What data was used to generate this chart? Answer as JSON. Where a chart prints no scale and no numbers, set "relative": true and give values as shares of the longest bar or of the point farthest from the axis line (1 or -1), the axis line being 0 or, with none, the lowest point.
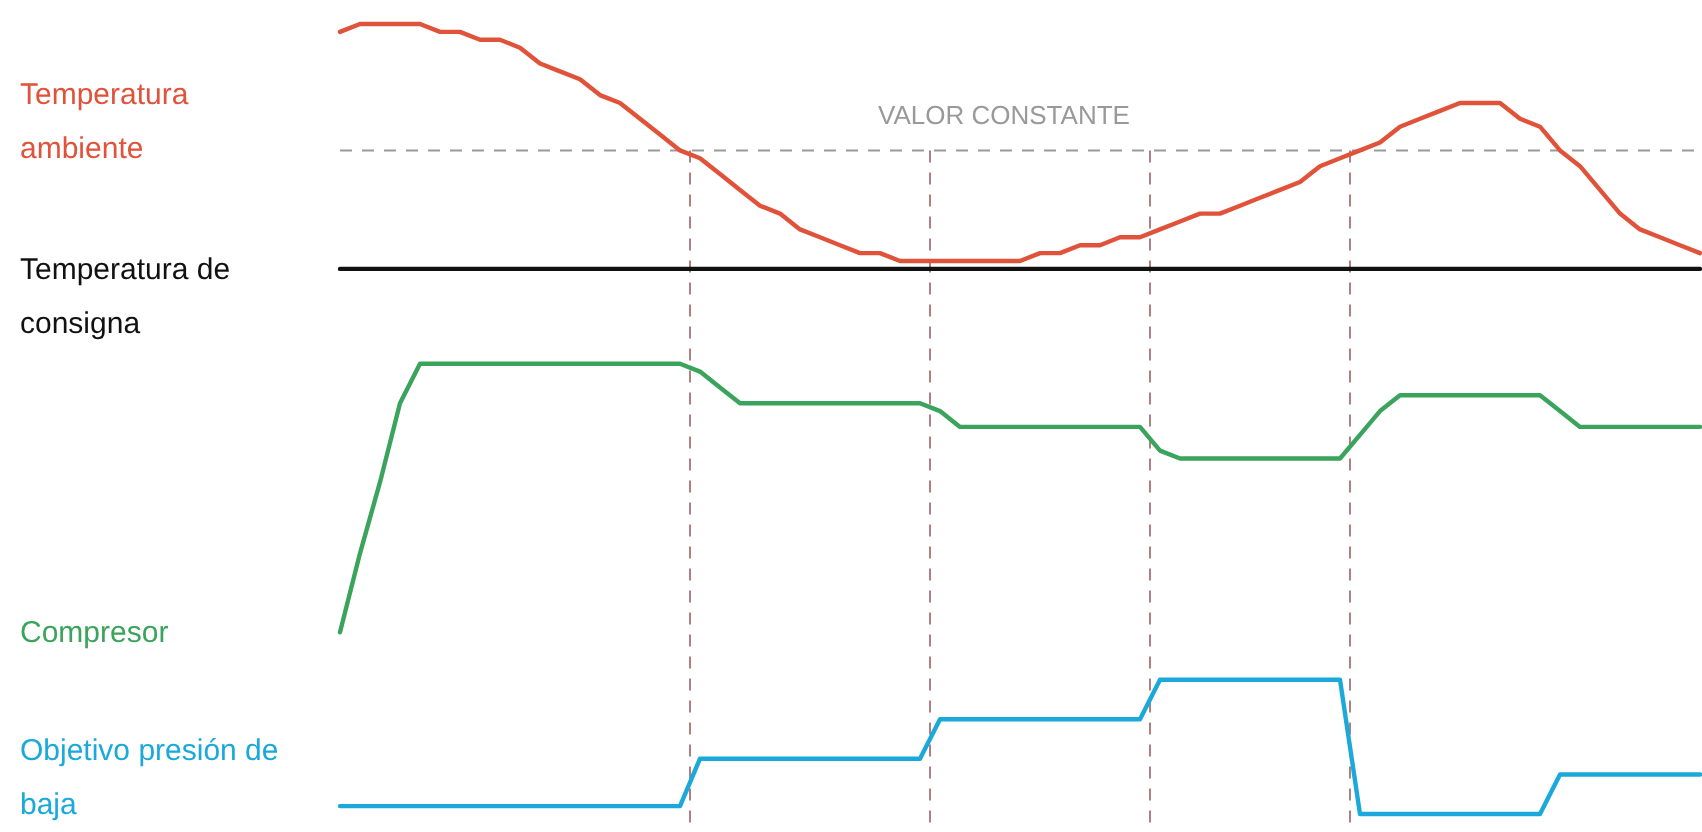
{
  "chart_data": {
    "type": "line",
    "relative": true,
    "categories": [
      null,
      null,
      null,
      null,
      null,
      null,
      null,
      null,
      null,
      null,
      null,
      null,
      null,
      null,
      null,
      null,
      null,
      null,
      null,
      null,
      null,
      null,
      null,
      null,
      null,
      null,
      null,
      null,
      null,
      null,
      null,
      null,
      null,
      null,
      null,
      null,
      null,
      null,
      null,
      null,
      null,
      null,
      null,
      null,
      null,
      null,
      null,
      null,
      null,
      null,
      null,
      null,
      null,
      null,
      null,
      null,
      null,
      null,
      null,
      null,
      null,
      null,
      null,
      null,
      null,
      null,
      null,
      null,
      null
    ],
    "series": [
      {
        "name": "Temperatura ambiente",
        "color": "#e0533a",
        "values": [
          0.99,
          1,
          1,
          1,
          1,
          0.99,
          0.99,
          0.98,
          0.98,
          0.97,
          0.95,
          0.94,
          0.93,
          0.91,
          0.9,
          0.88,
          0.86,
          0.84,
          0.83,
          0.81,
          0.79,
          0.77,
          0.76,
          0.74,
          0.73,
          0.72,
          0.71,
          0.71,
          0.7,
          0.7,
          0.7,
          0.7,
          0.7,
          0.7,
          0.7,
          0.71,
          0.71,
          0.72,
          0.72,
          0.73,
          0.73,
          0.74,
          0.75,
          0.76,
          0.76,
          0.77,
          0.78,
          0.79,
          0.8,
          0.82,
          0.83,
          0.84,
          0.85,
          0.87,
          0.88,
          0.89,
          0.9,
          0.9,
          0.9,
          0.88,
          0.87,
          0.84,
          0.82,
          0.79,
          0.76,
          0.74,
          0.73,
          0.72,
          0.71
        ]
      },
      {
        "name": "Temperatura de consigna",
        "color": "#111111",
        "values": [
          0.69,
          0.69,
          0.69,
          0.69,
          0.69,
          0.69,
          0.69,
          0.69,
          0.69,
          0.69,
          0.69,
          0.69,
          0.69,
          0.69,
          0.69,
          0.69,
          0.69,
          0.69,
          0.69,
          0.69,
          0.69,
          0.69,
          0.69,
          0.69,
          0.69,
          0.69,
          0.69,
          0.69,
          0.69,
          0.69,
          0.69,
          0.69,
          0.69,
          0.69,
          0.69,
          0.69,
          0.69,
          0.69,
          0.69,
          0.69,
          0.69,
          0.69,
          0.69,
          0.69,
          0.69,
          0.69,
          0.69,
          0.69,
          0.69,
          0.69,
          0.69,
          0.69,
          0.69,
          0.69,
          0.69,
          0.69,
          0.69,
          0.69,
          0.69,
          0.69,
          0.69,
          0.69,
          0.69,
          0.69,
          0.69,
          0.69,
          0.69,
          0.69,
          0.69
        ]
      },
      {
        "name": "Compresor",
        "color": "#3aa35c",
        "values": [
          0.23,
          0.33,
          0.42,
          0.52,
          0.57,
          0.57,
          0.57,
          0.57,
          0.57,
          0.57,
          0.57,
          0.57,
          0.57,
          0.57,
          0.57,
          0.57,
          0.57,
          0.57,
          0.56,
          0.54,
          0.52,
          0.52,
          0.52,
          0.52,
          0.52,
          0.52,
          0.52,
          0.52,
          0.52,
          0.52,
          0.51,
          0.49,
          0.49,
          0.49,
          0.49,
          0.49,
          0.49,
          0.49,
          0.49,
          0.49,
          0.49,
          0.46,
          0.45,
          0.45,
          0.45,
          0.45,
          0.45,
          0.45,
          0.45,
          0.45,
          0.45,
          0.48,
          0.51,
          0.53,
          0.53,
          0.53,
          0.53,
          0.53,
          0.53,
          0.53,
          0.53,
          0.51,
          0.49,
          0.49,
          0.49,
          0.49,
          0.49,
          0.49,
          0.49
        ]
      },
      {
        "name": "Objetivo presión de baja",
        "color": "#1ba9dc",
        "values": [
          0.01,
          0.01,
          0.01,
          0.01,
          0.01,
          0.01,
          0.01,
          0.01,
          0.01,
          0.01,
          0.01,
          0.01,
          0.01,
          0.01,
          0.01,
          0.01,
          0.01,
          0.01,
          0.07,
          0.07,
          0.07,
          0.07,
          0.07,
          0.07,
          0.07,
          0.07,
          0.07,
          0.07,
          0.07,
          0.07,
          0.12,
          0.12,
          0.12,
          0.12,
          0.12,
          0.12,
          0.12,
          0.12,
          0.12,
          0.12,
          0.12,
          0.17,
          0.17,
          0.17,
          0.17,
          0.17,
          0.17,
          0.17,
          0.17,
          0.17,
          0.17,
          0,
          0,
          0,
          0,
          0,
          0,
          0,
          0,
          0,
          0,
          0.05,
          0.05,
          0.05,
          0.05,
          0.05,
          0.05,
          0.05,
          0.05
        ]
      }
    ],
    "ref_lines": [
      {
        "axis": "y",
        "value": 0.84,
        "label": "VALOR CONSTANTE",
        "color": "#9a9a9a",
        "line_style": "dashed"
      }
    ]
  }
}
